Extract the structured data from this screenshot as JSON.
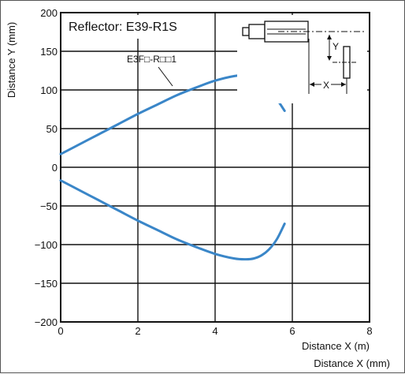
{
  "chart_data": {
    "type": "line",
    "title": "Reflector: E39-R1S",
    "xlabel": "Distance X (m)",
    "ylabel": "Distance Y (mm)",
    "xlim": [
      0,
      8
    ],
    "ylim": [
      -200,
      200
    ],
    "xticks": [
      "0",
      "2",
      "4",
      "6",
      "8"
    ],
    "yticks": [
      "200",
      "150",
      "100",
      "50",
      "0",
      "−50",
      "−100",
      "−150",
      "−200"
    ],
    "grid": true,
    "annotation": "E3F□-R□□1",
    "series": [
      {
        "name": "E3F□-R□□1",
        "color": "#3a86c8",
        "x": [
          0,
          0.5,
          1,
          1.5,
          2,
          2.5,
          3,
          3.5,
          4,
          4.5,
          4.8,
          5.0,
          5.2,
          5.4,
          5.6,
          5.8
        ],
        "y": [
          17,
          30,
          43,
          56,
          69,
          81,
          93,
          103,
          112,
          118,
          119,
          116,
          110,
          100,
          88,
          73
        ]
      },
      {
        "name": "",
        "color": "#3a86c8",
        "x": [
          0,
          0.5,
          1,
          1.5,
          2,
          2.5,
          3,
          3.5,
          4,
          4.5,
          4.8,
          5.0,
          5.2,
          5.4,
          5.6,
          5.8
        ],
        "y": [
          -17,
          -30,
          -43,
          -56,
          -69,
          -81,
          -93,
          -103,
          -112,
          -118,
          -119,
          -118,
          -114,
          -106,
          -93,
          -73
        ]
      }
    ],
    "inset_labels": {
      "y": "Y",
      "x": "X"
    },
    "bottom_caption": "Distance X (mm)"
  }
}
